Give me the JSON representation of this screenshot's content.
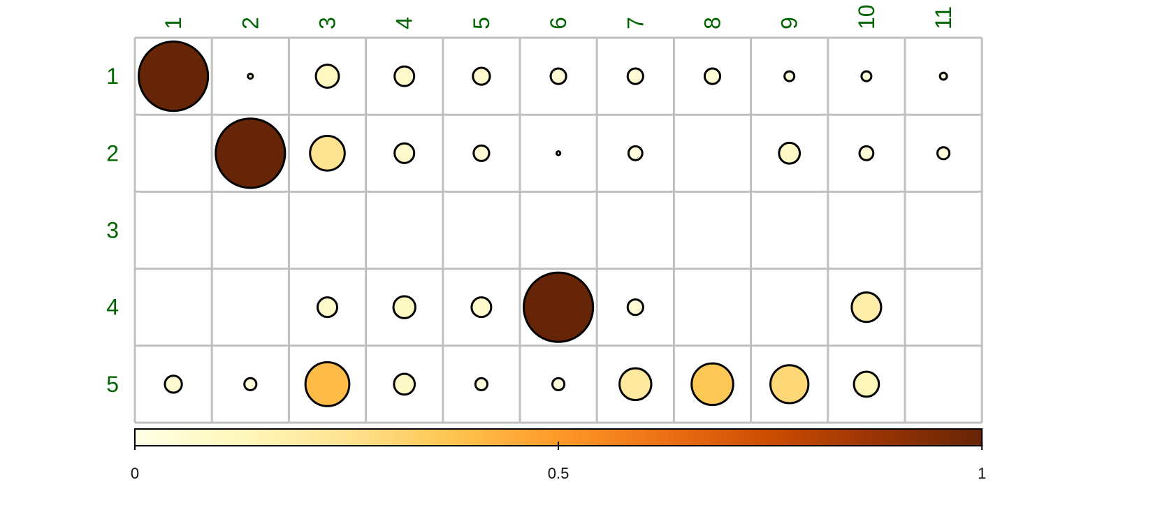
{
  "chart_data": {
    "type": "heatmap",
    "subtype": "bubble-matrix",
    "rows": [
      "1",
      "2",
      "3",
      "4",
      "5"
    ],
    "columns": [
      "1",
      "2",
      "3",
      "4",
      "5",
      "6",
      "7",
      "8",
      "9",
      "10",
      "11"
    ],
    "values": [
      [
        1.0,
        0.005,
        0.11,
        0.08,
        0.06,
        0.05,
        0.05,
        0.05,
        0.02,
        0.02,
        0.01
      ],
      [
        null,
        1.0,
        0.25,
        0.08,
        0.05,
        0.003,
        0.04,
        null,
        0.09,
        0.04,
        0.03
      ],
      [
        null,
        null,
        null,
        null,
        null,
        null,
        null,
        null,
        null,
        null,
        null
      ],
      [
        null,
        null,
        0.08,
        0.1,
        0.08,
        1.0,
        0.05,
        null,
        null,
        0.18,
        null
      ],
      [
        0.06,
        0.03,
        0.4,
        0.09,
        0.03,
        0.03,
        0.21,
        0.36,
        0.3,
        0.13,
        null
      ]
    ],
    "scale": {
      "min": 0,
      "max": 1,
      "ticks": [
        "0",
        "0.5",
        "1"
      ]
    },
    "grid": true,
    "legend": "bottom",
    "colors": {
      "label": "#006400",
      "grid": "#c0c0c0",
      "outline": "#000000",
      "gradient": [
        "#ffffe5",
        "#fff7bc",
        "#fee391",
        "#fec44f",
        "#fe9929",
        "#ec7014",
        "#cc4c02",
        "#993404",
        "#662506"
      ]
    }
  }
}
